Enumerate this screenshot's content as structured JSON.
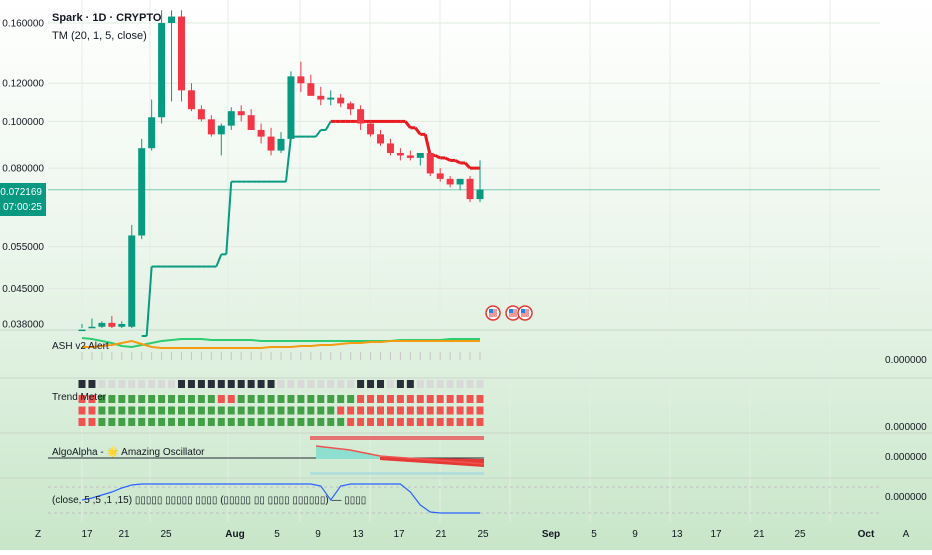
{
  "header": {
    "symbol_line": "Spark · 1D · CRYPTO",
    "indicator_line": "TM (20, 1, 5, close)"
  },
  "price_axis": {
    "labels": [
      "0.160000",
      "0.120000",
      "0.100000",
      "0.080000",
      "0.055000",
      "0.045000",
      "0.038000"
    ],
    "current_price": "0.072169",
    "countdown": "07:00:25"
  },
  "panes": [
    {
      "title": "ASH v2 Alert",
      "value": "0.000000"
    },
    {
      "title": "Trend Meter",
      "value": "0.000000"
    },
    {
      "title": "AlgoAlpha - 🌟 Amazing Oscillator",
      "value": "0.000000"
    },
    {
      "title": "(close, 5 ,5 ,1 ,15) ▯▯▯▯▯ ▯▯▯▯▯ ▯▯▯▯ (▯▯▯▯▯ ▯▯ ▯▯▯▯ ▯▯▯▯▯▯) — ▯▯▯▯",
      "value": "0.000000"
    }
  ],
  "time_axis": {
    "labels": [
      "Z",
      "17",
      "21",
      "25",
      "Aug",
      "5",
      "9",
      "13",
      "17",
      "21",
      "25",
      "Sep",
      "5",
      "9",
      "13",
      "17",
      "21",
      "25",
      "Oct",
      "A"
    ]
  },
  "colors": {
    "up": "#089981",
    "down": "#f23645",
    "trail_up": "#089981",
    "trail_down": "#e8191f",
    "price_badge": "#089981",
    "bg_top": "#ffffff",
    "bg_green": "#c8e6c9"
  },
  "icons": [
    "flag-us-icon",
    "flag-us-icon",
    "flag-us-icon"
  ],
  "chart_data": {
    "type": "candlestick",
    "categories": [
      "Jul 16",
      "Jul 17",
      "Jul 18",
      "Jul 19",
      "Jul 20",
      "Jul 21",
      "Jul 22",
      "Jul 23",
      "Jul 24",
      "Jul 25",
      "Jul 26",
      "Jul 27",
      "Jul 28",
      "Jul 29",
      "Jul 30",
      "Jul 31",
      "Aug 1",
      "Aug 2",
      "Aug 3",
      "Aug 4",
      "Aug 5",
      "Aug 6",
      "Aug 7",
      "Aug 8",
      "Aug 9",
      "Aug 10",
      "Aug 11",
      "Aug 12",
      "Aug 13",
      "Aug 14",
      "Aug 15",
      "Aug 16",
      "Aug 17",
      "Aug 18",
      "Aug 19",
      "Aug 20",
      "Aug 21",
      "Aug 22",
      "Aug 23",
      "Aug 24",
      "Aug 25"
    ],
    "open": [
      0.036,
      0.037,
      0.0375,
      0.0382,
      0.0375,
      0.0375,
      0.058,
      0.088,
      0.102,
      0.16,
      0.165,
      0.116,
      0.106,
      0.101,
      0.094,
      0.098,
      0.105,
      0.103,
      0.096,
      0.093,
      0.087,
      0.092,
      0.124,
      0.12,
      0.113,
      0.111,
      0.112,
      0.109,
      0.106,
      0.099,
      0.094,
      0.09,
      0.086,
      0.085,
      0.084,
      0.086,
      0.078,
      0.076,
      0.074,
      0.076,
      0.069
    ],
    "high": [
      0.038,
      0.039,
      0.0385,
      0.0395,
      0.0385,
      0.061,
      0.092,
      0.111,
      0.17,
      0.17,
      0.17,
      0.12,
      0.108,
      0.103,
      0.099,
      0.107,
      0.108,
      0.106,
      0.099,
      0.097,
      0.095,
      0.127,
      0.133,
      0.125,
      0.118,
      0.116,
      0.114,
      0.11,
      0.108,
      0.1,
      0.096,
      0.092,
      0.088,
      0.087,
      0.086,
      0.087,
      0.08,
      0.077,
      0.076,
      0.077,
      0.083
    ],
    "low": [
      0.035,
      0.0365,
      0.036,
      0.037,
      0.036,
      0.037,
      0.057,
      0.087,
      0.099,
      0.11,
      0.11,
      0.105,
      0.1,
      0.093,
      0.085,
      0.096,
      0.1,
      0.096,
      0.09,
      0.085,
      0.086,
      0.091,
      0.115,
      0.113,
      0.108,
      0.108,
      0.107,
      0.103,
      0.096,
      0.093,
      0.089,
      0.085,
      0.083,
      0.083,
      0.081,
      0.077,
      0.075,
      0.073,
      0.072,
      0.068,
      0.068
    ],
    "close": [
      0.037,
      0.0375,
      0.0382,
      0.0375,
      0.038,
      0.058,
      0.088,
      0.102,
      0.16,
      0.165,
      0.116,
      0.106,
      0.101,
      0.094,
      0.098,
      0.105,
      0.103,
      0.096,
      0.093,
      0.087,
      0.092,
      0.124,
      0.12,
      0.113,
      0.111,
      0.112,
      0.109,
      0.106,
      0.099,
      0.094,
      0.09,
      0.086,
      0.085,
      0.084,
      0.086,
      0.078,
      0.076,
      0.074,
      0.076,
      0.069,
      0.0722
    ],
    "trailing_stop": [
      0.03,
      0.03,
      0.03,
      0.03,
      0.03,
      0.03,
      0.03,
      0.05,
      0.05,
      0.05,
      0.05,
      0.05,
      0.05,
      0.05,
      0.053,
      0.075,
      0.075,
      0.075,
      0.075,
      0.075,
      0.075,
      0.093,
      0.093,
      0.093,
      0.096,
      0.1,
      0.1,
      0.1,
      0.1,
      0.1,
      0.1,
      0.1,
      0.1,
      0.097,
      0.094,
      0.085,
      0.084,
      0.083,
      0.082,
      0.08,
      0.08
    ],
    "trailing_stop_direction": [
      "up",
      "up",
      "up",
      "up",
      "up",
      "up",
      "up",
      "up",
      "up",
      "up",
      "up",
      "up",
      "up",
      "up",
      "up",
      "up",
      "up",
      "up",
      "up",
      "up",
      "up",
      "up",
      "up",
      "up",
      "up",
      "up",
      "down",
      "down",
      "down",
      "down",
      "down",
      "down",
      "down",
      "down",
      "down",
      "down",
      "down",
      "down",
      "down",
      "down",
      "down"
    ],
    "current_price": 0.072169,
    "y_scale": "log",
    "ylim": [
      0.036,
      0.175
    ],
    "grid": true
  }
}
